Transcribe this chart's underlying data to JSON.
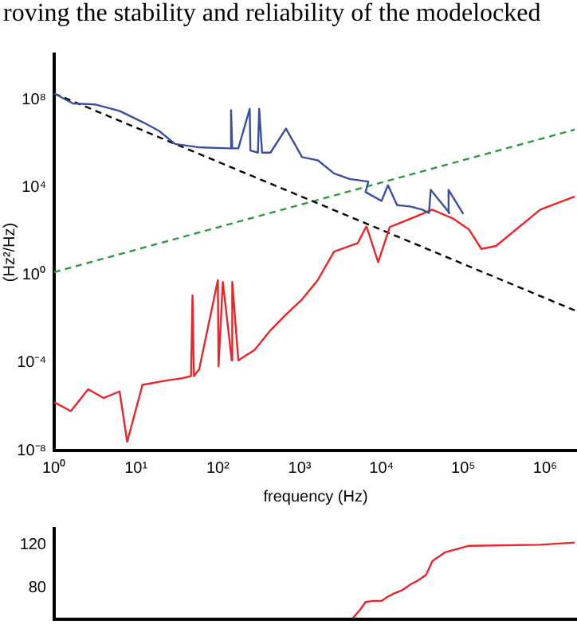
{
  "chart_data": [
    {
      "type": "line",
      "annotations": [
        "roving the stability and reliability of the modelocked"
      ],
      "xlabel": "frequency (Hz)",
      "ylabel": "(Hz²/Hz)",
      "log": "xy",
      "grid": false,
      "legend": false,
      "marker": "none",
      "xlim": [
        1,
        2450000
      ],
      "xticks": [
        {
          "value": 1,
          "label": "10⁰"
        },
        {
          "value": 10,
          "label": "10¹"
        },
        {
          "value": 100,
          "label": "10²"
        },
        {
          "value": 1000,
          "label": "10³"
        },
        {
          "value": 10000,
          "label": "10⁴"
        },
        {
          "value": 100000,
          "label": "10⁵"
        },
        {
          "value": 1000000,
          "label": "10⁶"
        }
      ],
      "ylim": [
        1e-08,
        12600000000.0
      ],
      "yticks": [
        {
          "value": 1e-08,
          "label": "10⁻⁸"
        },
        {
          "value": 0.0001,
          "label": "10⁻⁴"
        },
        {
          "value": 1,
          "label": "10⁰"
        },
        {
          "value": 10000,
          "label": "10⁴"
        },
        {
          "value": 100000000,
          "label": "10⁸"
        }
      ],
      "series": [
        {
          "color": "#3a4fa0",
          "line_style": "solid",
          "x": [
            1,
            1.7,
            3.2,
            6.3,
            12,
            19,
            30,
            59,
            140,
            145,
            150,
            178,
            245,
            250,
            309,
            320,
            347,
            440,
            680,
            1070,
            1660,
            2630,
            4070,
            6900,
            6400,
            10000,
            12000,
            15500,
            22400,
            31600,
            38000,
            40000,
            67600,
            66000,
            100000
          ],
          "values": [
            200000000.0,
            70000000.0,
            63000000.0,
            32000000.0,
            10000000.0,
            4000000.0,
            1000000.0,
            700000.0,
            630000.0,
            35000000.0,
            630000.0,
            630000.0,
            40000000.0,
            500000.0,
            400000.0,
            40000000.0,
            400000.0,
            400000.0,
            5000000.0,
            250000.0,
            180000.0,
            45000.0,
            25000.0,
            19000.0,
            6300.0,
            2500.0,
            13000.0,
            1600.0,
            1400.0,
            1000.0,
            700,
            8000.0,
            700,
            8000.0,
            630
          ]
        },
        {
          "color": "#e8262a",
          "line_style": "solid",
          "x": [
            1,
            1.6,
            2.6,
            4,
            6.3,
            7.8,
            12,
            24,
            37,
            47,
            49,
            51,
            59,
            100,
            102,
            115,
            148,
            150,
            178,
            282,
            437,
            676,
            1070,
            1660,
            2630,
            5130,
            6460,
            6600,
            9100,
            12600,
            17000,
            26900,
            41700,
            74100,
            117000,
            166000,
            251000,
            871000,
            2300000
          ],
          "values": [
            1.6e-06,
            6.3e-07,
            6.3e-06,
            2.5e-06,
            5e-06,
            2.5e-08,
            1e-05,
            1.6e-05,
            2e-05,
            2.5e-05,
            0.12,
            2.5e-05,
            5e-05,
            0.6,
            7e-05,
            0.5,
            0.00013,
            0.5,
            0.00013,
            0.0004,
            0.003,
            0.016,
            0.08,
            0.6,
            12,
            30,
            160,
            160,
            4,
            160,
            250,
            500,
            1000,
            400,
            125,
            16,
            22,
            1000,
            4000
          ]
        },
        {
          "color": "#000000",
          "line_style": "dashed",
          "x": [
            1,
            2300000
          ],
          "values": [
            200000000.0,
            0.025
          ]
        },
        {
          "color": "#2e9a3a",
          "line_style": "dashed",
          "x": [
            1,
            2300000
          ],
          "values": [
            1.4,
            4500000
          ]
        }
      ]
    },
    {
      "type": "line",
      "log": "x",
      "grid": false,
      "legend": false,
      "marker": "none",
      "tick_labels": "y",
      "xlim": [
        1,
        2450000
      ],
      "ylim": [
        51,
        135
      ],
      "yticks": [
        80,
        120
      ],
      "series": [
        {
          "color": "#e8262a",
          "line_style": "solid",
          "x": [
            4470,
            5500,
            6400,
            8000,
            10000,
            12000,
            14400,
            18000,
            22400,
            28000,
            35000,
            42000,
            60000,
            117000,
            870000,
            2300000
          ],
          "values": [
            52,
            60,
            67,
            68,
            68,
            72,
            75,
            78,
            83,
            87,
            92,
            105,
            113,
            119,
            120,
            122
          ]
        }
      ]
    }
  ]
}
